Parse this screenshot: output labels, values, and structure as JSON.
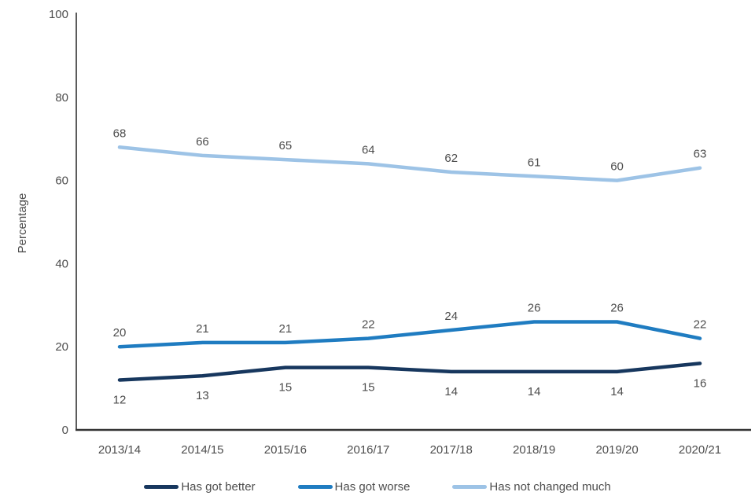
{
  "chart_data": {
    "type": "line",
    "title": "",
    "xlabel": "",
    "ylabel": "Percentage",
    "ylim": [
      0,
      100
    ],
    "yticks": [
      0,
      20,
      40,
      60,
      80,
      100
    ],
    "grid": false,
    "legend_position": "bottom",
    "data_labels": true,
    "categories": [
      "2013/14",
      "2014/15",
      "2015/16",
      "2016/17",
      "2017/18",
      "2018/19",
      "2019/20",
      "2020/21"
    ],
    "series": [
      {
        "name": "Has got better",
        "color": "#17375E",
        "label_position": "below",
        "values": [
          12,
          13,
          15,
          15,
          14,
          14,
          14,
          16
        ]
      },
      {
        "name": "Has got worse",
        "color": "#1F7CC1",
        "label_position": "above",
        "values": [
          20,
          21,
          21,
          22,
          24,
          26,
          26,
          22
        ]
      },
      {
        "name": "Has not changed much",
        "color": "#9DC3E6",
        "label_position": "above",
        "values": [
          68,
          66,
          65,
          64,
          62,
          61,
          60,
          63
        ]
      }
    ]
  },
  "colors": {
    "axis": "#333333",
    "tick_text": "#4d4d4d",
    "data_label_text": "#4d4d4d",
    "background": "#ffffff"
  }
}
